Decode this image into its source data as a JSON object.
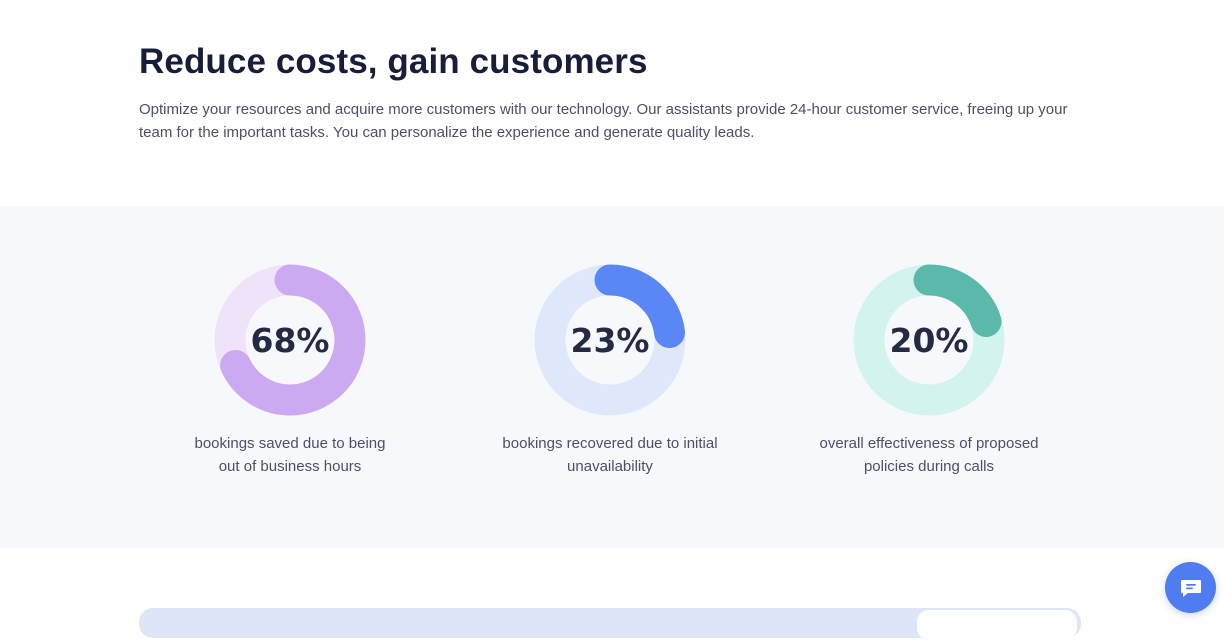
{
  "section": {
    "title": "Reduce costs, gain customers",
    "description": "Optimize your resources and acquire more customers with our technology. Our assistants provide 24-hour customer service, freeing up your team for the important tasks.  You can personalize the experience and generate quality leads."
  },
  "stats": [
    {
      "value_label": "68%",
      "percent": 68,
      "caption_line1": "bookings saved due to being",
      "caption_line2": "out of business hours",
      "track_color": "#efe3fa",
      "arc_color": "#cbaaf1"
    },
    {
      "value_label": "23%",
      "percent": 23,
      "caption_line1": "bookings recovered due to initial",
      "caption_line2": "unavailability",
      "track_color": "#dfe8fb",
      "arc_color": "#5b86f5"
    },
    {
      "value_label": "20%",
      "percent": 20,
      "caption_line1": "overall effectiveness of proposed",
      "caption_line2": "policies during calls",
      "track_color": "#d2f3ee",
      "arc_color": "#5ab9aa"
    }
  ],
  "chat_widget": {
    "icon": "chat-bubble-icon",
    "color": "#4f7cf0"
  }
}
